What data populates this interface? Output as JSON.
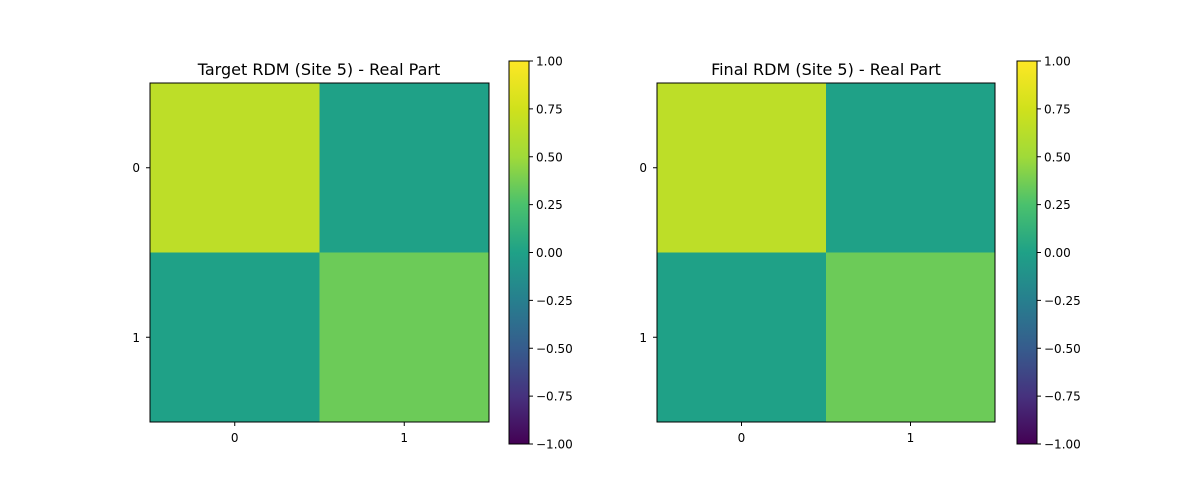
{
  "chart_data": [
    {
      "type": "heatmap",
      "title": "Target RDM (Site 5) - Real Part",
      "x_ticks": [
        "0",
        "1"
      ],
      "y_ticks": [
        "0",
        "1"
      ],
      "values": [
        [
          0.65,
          0.0
        ],
        [
          0.0,
          0.35
        ]
      ],
      "colorbar": {
        "range": [
          -1.0,
          1.0
        ],
        "ticks": [
          "−1.00",
          "−0.75",
          "−0.50",
          "−0.25",
          "0.00",
          "0.25",
          "0.50",
          "0.75",
          "1.00"
        ],
        "colormap": "viridis"
      }
    },
    {
      "type": "heatmap",
      "title": "Final RDM (Site 5) - Real Part",
      "x_ticks": [
        "0",
        "1"
      ],
      "y_ticks": [
        "0",
        "1"
      ],
      "values": [
        [
          0.65,
          0.0
        ],
        [
          0.0,
          0.35
        ]
      ],
      "colorbar": {
        "range": [
          -1.0,
          1.0
        ],
        "ticks": [
          "−1.00",
          "−0.75",
          "−0.50",
          "−0.25",
          "0.00",
          "0.25",
          "0.50",
          "0.75",
          "1.00"
        ],
        "colormap": "viridis"
      }
    }
  ]
}
